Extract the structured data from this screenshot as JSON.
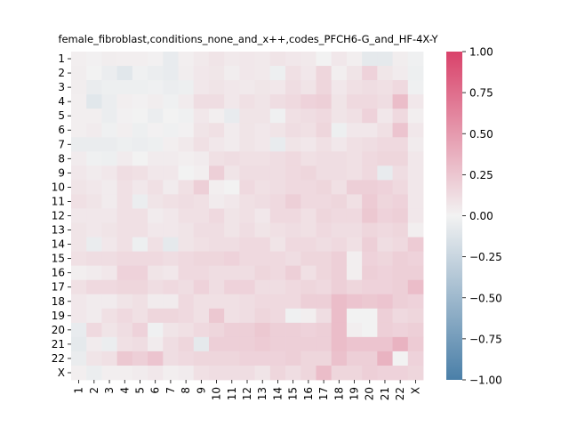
{
  "chart_data": {
    "type": "heatmap",
    "title": "female_fibroblast,conditions_none_and_x++,codes_PFCH6-G_and_HF-4X-Y",
    "xlabel": "",
    "ylabel": "",
    "rows": [
      "1",
      "2",
      "3",
      "4",
      "5",
      "6",
      "7",
      "8",
      "9",
      "10",
      "11",
      "12",
      "13",
      "14",
      "15",
      "16",
      "17",
      "18",
      "19",
      "20",
      "21",
      "22",
      "X"
    ],
    "cols": [
      "1",
      "2",
      "3",
      "4",
      "5",
      "6",
      "7",
      "8",
      "9",
      "10",
      "11",
      "12",
      "13",
      "14",
      "15",
      "16",
      "17",
      "18",
      "19",
      "20",
      "21",
      "22",
      "X"
    ],
    "vmin": -1.0,
    "vmax": 1.0,
    "colorbar_ticks": [
      "1.00",
      "0.75",
      "0.50",
      "0.25",
      "0.00",
      "−0.25",
      "−0.50",
      "−0.75",
      "−1.00"
    ],
    "colorbar_tick_values": [
      1.0,
      0.75,
      0.5,
      0.25,
      0.0,
      -0.25,
      -0.5,
      -0.75,
      -1.0
    ],
    "colormap": {
      "low": "#4a7fa8",
      "mid": "#f2f2f2",
      "high": "#d9426a"
    },
    "values": [
      [
        0.02,
        0.01,
        0.03,
        0.02,
        0.02,
        0.01,
        -0.06,
        0.02,
        0.05,
        0.08,
        0.05,
        0.06,
        0.05,
        0.08,
        0.06,
        0.05,
        0.0,
        0.06,
        0.02,
        -0.08,
        -0.08,
        0.03,
        -0.02
      ],
      [
        0.03,
        0.0,
        -0.04,
        -0.1,
        -0.02,
        -0.04,
        -0.06,
        0.03,
        0.06,
        0.07,
        0.03,
        0.06,
        0.05,
        -0.03,
        0.1,
        0.06,
        0.16,
        0.02,
        0.08,
        0.18,
        0.07,
        0.04,
        -0.03
      ],
      [
        0.03,
        -0.05,
        -0.03,
        -0.03,
        -0.03,
        -0.02,
        -0.04,
        -0.03,
        0.06,
        0.08,
        0.06,
        0.05,
        0.07,
        0.06,
        0.12,
        0.08,
        0.16,
        0.06,
        0.1,
        0.12,
        0.1,
        0.14,
        -0.02
      ],
      [
        0.02,
        -0.1,
        -0.04,
        0.02,
        0.01,
        0.03,
        -0.02,
        0.04,
        0.12,
        0.12,
        0.06,
        0.1,
        0.08,
        0.12,
        0.14,
        0.18,
        0.2,
        0.08,
        0.14,
        0.14,
        0.12,
        0.3,
        0.06
      ],
      [
        0.02,
        0.02,
        -0.04,
        0.01,
        0.0,
        -0.04,
        0.0,
        -0.02,
        0.06,
        0.02,
        -0.06,
        0.08,
        0.08,
        -0.02,
        0.1,
        0.12,
        0.14,
        0.08,
        0.1,
        0.18,
        0.06,
        0.14,
        0.02
      ],
      [
        0.02,
        0.04,
        -0.02,
        0.02,
        -0.03,
        0.01,
        -0.02,
        0.01,
        0.08,
        0.1,
        0.04,
        0.08,
        0.06,
        0.08,
        0.12,
        0.1,
        0.16,
        -0.03,
        0.06,
        0.06,
        0.1,
        0.26,
        0.06
      ],
      [
        -0.05,
        -0.05,
        -0.05,
        -0.03,
        -0.04,
        -0.03,
        0.02,
        0.05,
        0.1,
        0.06,
        0.04,
        0.08,
        0.06,
        -0.06,
        0.08,
        0.06,
        0.1,
        0.06,
        0.1,
        0.12,
        0.14,
        0.14,
        0.04
      ],
      [
        0.04,
        -0.02,
        -0.03,
        0.04,
        0.0,
        0.04,
        0.04,
        0.02,
        0.04,
        0.1,
        0.12,
        0.1,
        0.1,
        0.12,
        0.14,
        0.1,
        0.12,
        0.12,
        0.1,
        0.14,
        0.16,
        0.16,
        0.06
      ],
      [
        0.06,
        0.04,
        0.06,
        0.12,
        0.1,
        0.06,
        0.06,
        0.0,
        0.02,
        0.2,
        0.08,
        0.12,
        0.12,
        0.12,
        0.14,
        0.16,
        0.12,
        0.12,
        0.1,
        0.14,
        -0.06,
        0.12,
        0.06
      ],
      [
        0.08,
        0.06,
        0.04,
        0.1,
        0.06,
        0.1,
        0.04,
        0.1,
        0.2,
        0.02,
        0.0,
        0.14,
        0.1,
        0.12,
        0.14,
        0.14,
        0.16,
        0.1,
        0.2,
        0.2,
        0.18,
        0.14,
        0.06
      ],
      [
        0.1,
        0.08,
        0.04,
        0.1,
        -0.04,
        0.08,
        0.1,
        0.12,
        0.1,
        0.04,
        0.06,
        0.1,
        0.12,
        0.14,
        0.2,
        0.14,
        0.14,
        0.16,
        0.1,
        0.22,
        0.16,
        0.18,
        0.06
      ],
      [
        0.06,
        0.06,
        0.06,
        0.1,
        0.1,
        0.04,
        0.06,
        0.1,
        0.1,
        0.14,
        0.08,
        0.1,
        0.06,
        0.14,
        0.14,
        0.1,
        0.16,
        0.14,
        0.14,
        0.24,
        0.18,
        0.2,
        0.06
      ],
      [
        0.08,
        0.06,
        0.08,
        0.1,
        0.1,
        0.06,
        0.06,
        0.08,
        0.12,
        0.12,
        0.08,
        0.12,
        0.08,
        0.1,
        0.12,
        0.1,
        0.14,
        0.12,
        0.12,
        0.16,
        0.14,
        0.16,
        0.02
      ],
      [
        0.08,
        -0.05,
        0.06,
        0.1,
        -0.03,
        0.1,
        -0.08,
        0.08,
        0.1,
        0.12,
        0.12,
        0.14,
        0.14,
        0.08,
        0.14,
        0.14,
        0.12,
        0.14,
        0.1,
        0.2,
        0.12,
        0.14,
        0.22
      ],
      [
        0.1,
        0.12,
        0.12,
        0.14,
        0.14,
        0.14,
        0.12,
        0.14,
        0.16,
        0.16,
        0.18,
        0.14,
        0.14,
        0.14,
        0.12,
        0.16,
        0.16,
        0.2,
        0.02,
        0.18,
        0.16,
        0.2,
        0.18
      ],
      [
        0.02,
        0.04,
        0.06,
        0.18,
        0.18,
        0.08,
        0.06,
        0.14,
        0.14,
        0.12,
        0.12,
        0.12,
        0.16,
        0.14,
        0.2,
        0.1,
        0.16,
        0.2,
        0.02,
        0.2,
        0.18,
        0.2,
        0.2
      ],
      [
        0.1,
        0.14,
        0.14,
        0.16,
        0.16,
        0.12,
        0.14,
        0.12,
        0.18,
        0.12,
        0.18,
        0.18,
        0.12,
        0.12,
        0.14,
        0.16,
        0.14,
        0.2,
        0.16,
        0.18,
        0.18,
        0.2,
        0.3
      ],
      [
        0.06,
        0.04,
        0.04,
        0.08,
        0.1,
        0.04,
        0.04,
        0.14,
        0.1,
        0.1,
        0.1,
        0.12,
        0.14,
        0.14,
        0.14,
        0.2,
        0.2,
        0.3,
        0.26,
        0.24,
        0.26,
        0.2,
        0.18
      ],
      [
        0.06,
        0.04,
        0.1,
        0.14,
        0.1,
        0.16,
        0.16,
        0.14,
        0.1,
        0.24,
        0.1,
        0.12,
        0.16,
        0.14,
        -0.02,
        0.02,
        0.12,
        0.3,
        0.0,
        0.0,
        0.2,
        0.14,
        0.16
      ],
      [
        -0.06,
        0.14,
        0.08,
        0.12,
        0.18,
        -0.02,
        0.08,
        0.1,
        0.14,
        0.16,
        0.2,
        0.2,
        0.24,
        0.2,
        0.2,
        0.18,
        0.2,
        0.3,
        0.02,
        0.0,
        0.2,
        0.18,
        0.2
      ],
      [
        -0.08,
        0.04,
        -0.04,
        0.1,
        0.12,
        0.04,
        0.12,
        0.16,
        -0.08,
        0.2,
        0.2,
        0.2,
        0.22,
        0.2,
        0.2,
        0.2,
        0.2,
        0.3,
        0.26,
        0.26,
        0.26,
        0.36,
        0.22
      ],
      [
        -0.05,
        0.08,
        0.1,
        0.24,
        0.2,
        0.26,
        0.12,
        0.14,
        0.16,
        0.16,
        0.16,
        0.18,
        0.18,
        0.18,
        0.2,
        0.16,
        0.16,
        0.28,
        0.2,
        0.2,
        0.36,
        0.0,
        0.18
      ],
      [
        0.02,
        -0.04,
        0.02,
        0.02,
        0.04,
        0.06,
        0.02,
        0.04,
        0.1,
        0.12,
        0.12,
        0.12,
        0.08,
        0.16,
        0.12,
        0.16,
        0.3,
        0.16,
        0.16,
        0.2,
        0.18,
        0.18,
        0.16
      ]
    ]
  }
}
